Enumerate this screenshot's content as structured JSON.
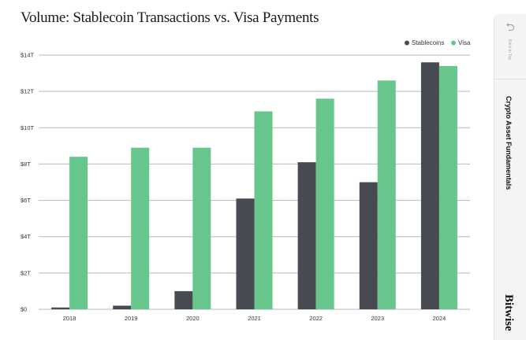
{
  "chart_data": {
    "type": "bar",
    "title": "Volume: Stablecoin Transactions vs. Visa Payments",
    "categories": [
      "2018",
      "2019",
      "2020",
      "2021",
      "2022",
      "2023",
      "2024"
    ],
    "series": [
      {
        "name": "Stablecoins",
        "color": "#474b51",
        "values": [
          0.1,
          0.2,
          1.0,
          6.1,
          8.1,
          7.0,
          13.6
        ]
      },
      {
        "name": "Visa",
        "color": "#66c68b",
        "values": [
          8.4,
          8.9,
          8.9,
          10.9,
          11.6,
          12.6,
          13.4
        ]
      }
    ],
    "ylim": [
      0,
      14
    ],
    "yticks": [
      0,
      2,
      4,
      6,
      8,
      10,
      12,
      14
    ],
    "ytick_labels": [
      "$0",
      "$2T",
      "$4T",
      "$6T",
      "$8T",
      "$10T",
      "$12T",
      "$14T"
    ],
    "legend_position": "top-right",
    "grid": true
  },
  "sidebar": {
    "back_to_top": "Back to Top",
    "back_icon": "return-arrow-icon",
    "section_label": "Crypto Asset Fundamentals",
    "brand": "Bitwise"
  }
}
